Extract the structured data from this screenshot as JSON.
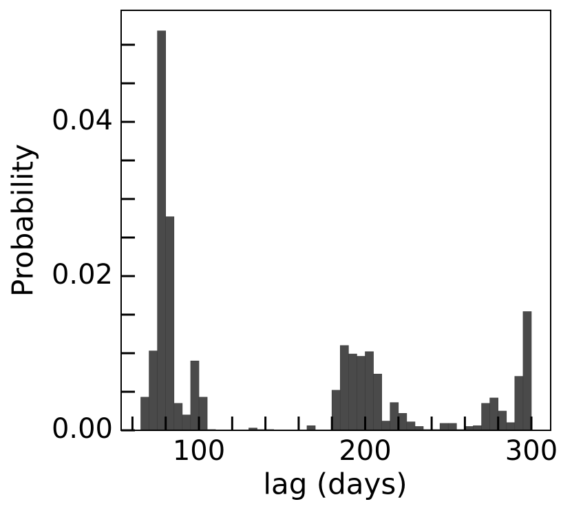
{
  "chart_data": {
    "type": "histogram",
    "xlabel": "lag (days)",
    "ylabel": "Probability",
    "bins": [
      65,
      70,
      75,
      80,
      85,
      90,
      95,
      100,
      105,
      110,
      115,
      120,
      125,
      130,
      135,
      140,
      145,
      150,
      155,
      160,
      165,
      170,
      175,
      180,
      185,
      190,
      195,
      200,
      205,
      210,
      215,
      220,
      225,
      230,
      235,
      240,
      245,
      250,
      255,
      260,
      265,
      270,
      275,
      280,
      285,
      290,
      295,
      300
    ],
    "values": [
      0.0043,
      0.0103,
      0.0518,
      0.0277,
      0.0035,
      0.002,
      0.009,
      0.0043,
      0.0001,
      0,
      0,
      0,
      0,
      0.0003,
      0.0001,
      0.0001,
      0,
      0,
      0,
      0,
      0.0006,
      0,
      0,
      0.0052,
      0.011,
      0.0099,
      0.0096,
      0.0102,
      0.0073,
      0.0012,
      0.0036,
      0.0022,
      0.0011,
      0.0005,
      0.0001,
      0.0001,
      0.0009,
      0.0009,
      0.0001,
      0.0005,
      0.0006,
      0.0035,
      0.0042,
      0.0025,
      0.001,
      0.007,
      0.0154
    ],
    "color": "#4a4a4a",
    "xlim": [
      53.2,
      311.6
    ],
    "ylim": [
      0,
      0.05446
    ],
    "xticks": [
      100,
      200,
      300
    ],
    "xminor_ticks": [
      60,
      80,
      120,
      140,
      160,
      180,
      220,
      240,
      260,
      280
    ],
    "yticks": [
      {
        "value": 0,
        "label": "0.00"
      },
      {
        "value": 0.02,
        "label": "0.02"
      },
      {
        "value": 0.04,
        "label": "0.04"
      }
    ],
    "yminor_ticks": [
      0.005,
      0.01,
      0.015,
      0.025,
      0.03,
      0.035,
      0.045,
      0.05
    ]
  }
}
